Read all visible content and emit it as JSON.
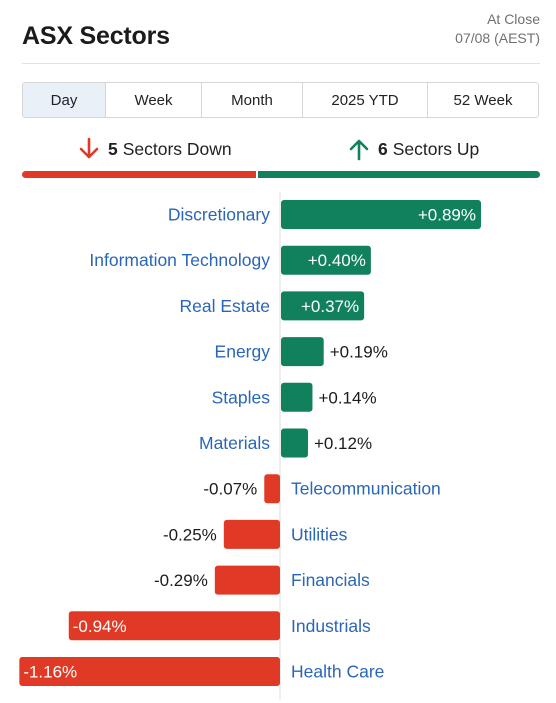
{
  "header": {
    "title": "ASX Sectors",
    "as_of_line1": "At Close",
    "as_of_line2": "07/08 (AEST)"
  },
  "tabs": [
    {
      "label": "Day",
      "active": true
    },
    {
      "label": "Week",
      "active": false
    },
    {
      "label": "Month",
      "active": false
    },
    {
      "label": "2025 YTD",
      "active": false
    },
    {
      "label": "52 Week",
      "active": false
    }
  ],
  "summary": {
    "down_count": "5",
    "down_text": "Sectors Down",
    "up_count": "6",
    "up_text": "Sectors Up"
  },
  "colors": {
    "up": "#11805c",
    "down": "#e03a26",
    "label": "#2a66b8"
  },
  "chart_data": {
    "type": "bar",
    "orientation": "horizontal",
    "categories": [
      "Discretionary",
      "Information Technology",
      "Real Estate",
      "Energy",
      "Staples",
      "Materials",
      "Telecommunication",
      "Utilities",
      "Financials",
      "Industrials",
      "Health Care"
    ],
    "values": [
      0.89,
      0.4,
      0.37,
      0.19,
      0.14,
      0.12,
      -0.07,
      -0.25,
      -0.29,
      -0.94,
      -1.16
    ],
    "value_labels": [
      "+0.89%",
      "+0.40%",
      "+0.37%",
      "+0.19%",
      "+0.14%",
      "+0.12%",
      "-0.07%",
      "-0.25%",
      "-0.29%",
      "-0.94%",
      "-1.16%"
    ],
    "unit": "%",
    "grid": false,
    "legend": "none"
  }
}
